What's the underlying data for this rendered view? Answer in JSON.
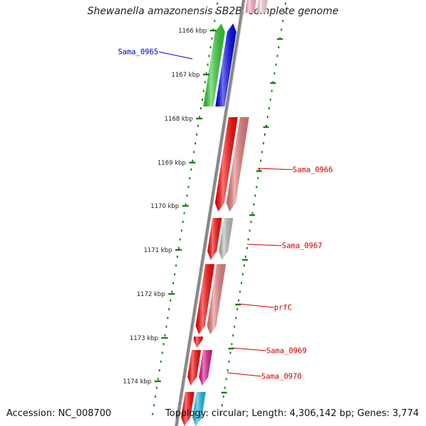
{
  "title": "Shewanella amazonensis SB2B, complete genome",
  "footer": {
    "accession": "Accession: NC_008700",
    "summary": "Topology: circular; Length: 4,306,142 bp; Genes: 3,774"
  },
  "colors": {
    "backbone": "#888888",
    "ticks": "#1a7f1a",
    "forward_label": "#0000cc",
    "reverse_label": "#cc0000"
  },
  "ticks": [
    {
      "label": "1166 kbp"
    },
    {
      "label": "1167 kbp"
    },
    {
      "label": "1168 kbp"
    },
    {
      "label": "1169 kbp"
    },
    {
      "label": "1170 kbp"
    },
    {
      "label": "1171 kbp"
    },
    {
      "label": "1172 kbp"
    },
    {
      "label": "1173 kbp"
    },
    {
      "label": "1174 kbp"
    }
  ],
  "gene_labels": [
    {
      "name": "Sama_0965",
      "strand": "forward"
    },
    {
      "name": "Sama_0966",
      "strand": "reverse"
    },
    {
      "name": "Sama_0967",
      "strand": "reverse"
    },
    {
      "name": "prfC",
      "strand": "reverse"
    },
    {
      "name": "Sama_0969",
      "strand": "reverse"
    },
    {
      "name": "Sama_0970",
      "strand": "reverse"
    }
  ],
  "genes": [
    {
      "strand": "forward",
      "color": "#33cc33",
      "cog_color": "#0000ee"
    },
    {
      "strand": "reverse",
      "color": "#ff0000",
      "cog_color": "#e37a7a"
    },
    {
      "strand": "reverse",
      "color": "#ff0000",
      "cog_color": "#bbbbbb"
    },
    {
      "strand": "reverse",
      "color": "#ff0000",
      "cog_color": "#e88080"
    },
    {
      "strand": "reverse",
      "color": "#ff0000",
      "cog_color": null
    },
    {
      "strand": "reverse",
      "color": "#ff0000",
      "cog_color": "#e2148c"
    },
    {
      "strand": "reverse",
      "color": "#ff0000",
      "cog_color": "#18b8e8"
    },
    {
      "strand": "forward",
      "color": "#ffb0c8",
      "cog_color": "#ffd0d8"
    }
  ]
}
